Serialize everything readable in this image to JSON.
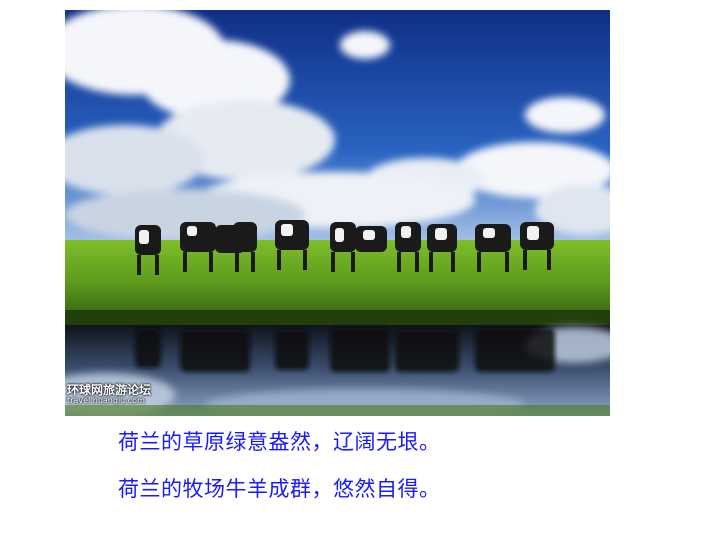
{
  "photo": {
    "subject": "holstein-cows-on-dutch-pasture",
    "watermark": {
      "site_name": "环球网旅游论坛",
      "url": "travel.huanqiu.com"
    },
    "colors": {
      "sky": "#1f4fa8",
      "grass": "#5f9e1e",
      "water": "#1a1f2e"
    }
  },
  "caption": {
    "line1": "荷兰的草原绿意盎然，辽阔无垠。",
    "line2": "荷兰的牧场牛羊成群，悠然自得。",
    "color": "#1a1aff"
  }
}
